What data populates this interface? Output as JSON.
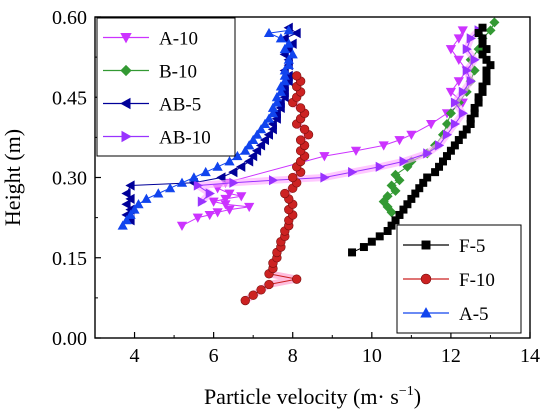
{
  "chart_data": {
    "type": "scatter",
    "title": "",
    "xlabel": "Particle velocity (m· s",
    "xlabel_sup": "−1",
    "xlabel_close": ")",
    "ylabel": "Height (m)",
    "xlim": [
      3,
      14
    ],
    "ylim": [
      0,
      0.6
    ],
    "xticks": [
      4,
      6,
      8,
      10,
      12,
      14
    ],
    "xtick_labels": [
      "4",
      "6",
      "8",
      "10",
      "12",
      "14"
    ],
    "yticks": [
      0,
      0.15,
      0.3,
      0.45,
      0.6
    ],
    "ytick_labels": [
      "0.00",
      "0.15",
      "0.30",
      "0.45",
      "0.60"
    ],
    "grid": false,
    "legend_placement": [
      "top-left",
      "bottom-right"
    ],
    "series": [
      {
        "name": "A-10",
        "color": "#cc33ff",
        "marker": "triangle-down",
        "points": [
          [
            5.2,
            0.21
          ],
          [
            5.6,
            0.225
          ],
          [
            5.9,
            0.23
          ],
          [
            6.1,
            0.235
          ],
          [
            6.4,
            0.24
          ],
          [
            6.9,
            0.245
          ],
          [
            6.3,
            0.25
          ],
          [
            6.0,
            0.255
          ],
          [
            6.3,
            0.26
          ],
          [
            6.7,
            0.265
          ],
          [
            6.4,
            0.27
          ],
          [
            6.1,
            0.28
          ],
          [
            6.3,
            0.29
          ],
          [
            8.8,
            0.34
          ],
          [
            9.6,
            0.35
          ],
          [
            10.3,
            0.36
          ],
          [
            10.7,
            0.37
          ],
          [
            11.0,
            0.38
          ],
          [
            11.5,
            0.4
          ],
          [
            11.9,
            0.42
          ],
          [
            12.3,
            0.44
          ],
          [
            12.0,
            0.46
          ],
          [
            12.2,
            0.48
          ],
          [
            12.4,
            0.5
          ],
          [
            12.2,
            0.52
          ],
          [
            12.0,
            0.54
          ],
          [
            12.2,
            0.56
          ],
          [
            12.3,
            0.575
          ]
        ]
      },
      {
        "name": "B-10",
        "color": "#339933",
        "marker": "diamond",
        "points": [
          [
            10.5,
            0.235
          ],
          [
            10.4,
            0.245
          ],
          [
            10.3,
            0.255
          ],
          [
            10.4,
            0.265
          ],
          [
            10.6,
            0.275
          ],
          [
            10.5,
            0.285
          ],
          [
            10.7,
            0.295
          ],
          [
            10.6,
            0.305
          ],
          [
            10.9,
            0.32
          ],
          [
            11.0,
            0.33
          ],
          [
            11.4,
            0.345
          ],
          [
            11.6,
            0.36
          ],
          [
            11.8,
            0.38
          ],
          [
            11.9,
            0.4
          ],
          [
            12.0,
            0.42
          ],
          [
            12.2,
            0.44
          ],
          [
            12.4,
            0.46
          ],
          [
            12.5,
            0.48
          ],
          [
            12.6,
            0.5
          ],
          [
            12.5,
            0.52
          ],
          [
            12.7,
            0.54
          ],
          [
            12.8,
            0.56
          ],
          [
            13.0,
            0.575
          ],
          [
            13.1,
            0.59
          ]
        ]
      },
      {
        "name": "AB-5",
        "color": "#000099",
        "marker": "triangle-left",
        "points": [
          [
            3.9,
            0.22
          ],
          [
            3.8,
            0.23
          ],
          [
            3.9,
            0.24
          ],
          [
            3.8,
            0.25
          ],
          [
            3.9,
            0.26
          ],
          [
            3.8,
            0.27
          ],
          [
            3.9,
            0.285
          ],
          [
            5.5,
            0.29
          ],
          [
            6.2,
            0.3
          ],
          [
            6.5,
            0.31
          ],
          [
            6.7,
            0.32
          ],
          [
            6.9,
            0.33
          ],
          [
            7.0,
            0.34
          ],
          [
            7.1,
            0.35
          ],
          [
            7.2,
            0.36
          ],
          [
            7.3,
            0.37
          ],
          [
            7.4,
            0.38
          ],
          [
            7.5,
            0.39
          ],
          [
            7.5,
            0.4
          ],
          [
            7.6,
            0.41
          ],
          [
            7.6,
            0.42
          ],
          [
            7.7,
            0.43
          ],
          [
            7.7,
            0.44
          ],
          [
            7.8,
            0.45
          ],
          [
            7.8,
            0.46
          ],
          [
            7.8,
            0.47
          ],
          [
            7.9,
            0.48
          ],
          [
            7.9,
            0.49
          ],
          [
            7.8,
            0.5
          ],
          [
            7.9,
            0.51
          ],
          [
            7.9,
            0.52
          ],
          [
            7.8,
            0.53
          ],
          [
            7.9,
            0.54
          ],
          [
            8.0,
            0.55
          ],
          [
            7.8,
            0.56
          ],
          [
            8.1,
            0.57
          ],
          [
            7.9,
            0.58
          ]
        ]
      },
      {
        "name": "AB-10",
        "color": "#9933ff",
        "marker": "triangle-right",
        "points": [
          [
            5.7,
            0.255
          ],
          [
            5.9,
            0.27
          ],
          [
            5.6,
            0.285
          ],
          [
            6.5,
            0.29
          ],
          [
            7.5,
            0.295
          ],
          [
            8.8,
            0.3
          ],
          [
            9.5,
            0.31
          ],
          [
            10.2,
            0.32
          ],
          [
            10.8,
            0.33
          ],
          [
            11.4,
            0.345
          ],
          [
            11.7,
            0.36
          ],
          [
            11.9,
            0.38
          ],
          [
            12.1,
            0.4
          ],
          [
            12.3,
            0.42
          ],
          [
            12.1,
            0.44
          ],
          [
            12.3,
            0.46
          ],
          [
            12.5,
            0.48
          ],
          [
            12.4,
            0.5
          ],
          [
            12.6,
            0.52
          ],
          [
            12.4,
            0.54
          ],
          [
            12.5,
            0.56
          ],
          [
            12.7,
            0.575
          ]
        ]
      },
      {
        "name": "F-5",
        "color": "#000000",
        "marker": "square",
        "points": [
          [
            9.5,
            0.16
          ],
          [
            9.8,
            0.17
          ],
          [
            10.0,
            0.18
          ],
          [
            10.2,
            0.19
          ],
          [
            10.4,
            0.2
          ],
          [
            10.5,
            0.21
          ],
          [
            10.6,
            0.22
          ],
          [
            10.7,
            0.23
          ],
          [
            10.8,
            0.24
          ],
          [
            10.9,
            0.25
          ],
          [
            11.0,
            0.26
          ],
          [
            11.1,
            0.27
          ],
          [
            11.2,
            0.28
          ],
          [
            11.3,
            0.29
          ],
          [
            11.4,
            0.3
          ],
          [
            11.6,
            0.31
          ],
          [
            11.7,
            0.32
          ],
          [
            11.8,
            0.33
          ],
          [
            11.9,
            0.34
          ],
          [
            12.0,
            0.35
          ],
          [
            12.1,
            0.36
          ],
          [
            12.2,
            0.37
          ],
          [
            12.3,
            0.38
          ],
          [
            12.4,
            0.39
          ],
          [
            12.5,
            0.4
          ],
          [
            12.5,
            0.41
          ],
          [
            12.6,
            0.42
          ],
          [
            12.6,
            0.43
          ],
          [
            12.7,
            0.44
          ],
          [
            12.7,
            0.45
          ],
          [
            12.8,
            0.46
          ],
          [
            12.8,
            0.47
          ],
          [
            12.9,
            0.48
          ],
          [
            12.9,
            0.49
          ],
          [
            12.9,
            0.5
          ],
          [
            13.0,
            0.51
          ],
          [
            12.9,
            0.52
          ],
          [
            12.8,
            0.53
          ],
          [
            12.9,
            0.54
          ],
          [
            12.8,
            0.55
          ],
          [
            12.8,
            0.56
          ],
          [
            12.7,
            0.57
          ],
          [
            12.8,
            0.58
          ]
        ]
      },
      {
        "name": "F-10",
        "color": "#cc2222",
        "marker": "circle",
        "points": [
          [
            6.8,
            0.07
          ],
          [
            7.0,
            0.08
          ],
          [
            7.2,
            0.09
          ],
          [
            7.4,
            0.1
          ],
          [
            8.1,
            0.11
          ],
          [
            7.4,
            0.12
          ],
          [
            7.5,
            0.13
          ],
          [
            7.5,
            0.14
          ],
          [
            7.6,
            0.15
          ],
          [
            7.6,
            0.16
          ],
          [
            7.7,
            0.17
          ],
          [
            7.7,
            0.18
          ],
          [
            7.8,
            0.19
          ],
          [
            7.8,
            0.2
          ],
          [
            7.9,
            0.21
          ],
          [
            7.9,
            0.22
          ],
          [
            8.0,
            0.23
          ],
          [
            7.9,
            0.24
          ],
          [
            8.0,
            0.25
          ],
          [
            7.9,
            0.26
          ],
          [
            7.8,
            0.27
          ],
          [
            8.0,
            0.28
          ],
          [
            8.1,
            0.29
          ],
          [
            8.0,
            0.3
          ],
          [
            8.2,
            0.31
          ],
          [
            8.1,
            0.32
          ],
          [
            8.2,
            0.33
          ],
          [
            8.3,
            0.34
          ],
          [
            8.2,
            0.35
          ],
          [
            8.3,
            0.36
          ],
          [
            8.2,
            0.37
          ],
          [
            8.4,
            0.38
          ],
          [
            8.3,
            0.39
          ],
          [
            8.1,
            0.4
          ],
          [
            8.2,
            0.41
          ],
          [
            8.3,
            0.42
          ],
          [
            8.2,
            0.43
          ],
          [
            8.0,
            0.44
          ],
          [
            8.1,
            0.45
          ],
          [
            8.2,
            0.46
          ],
          [
            8.1,
            0.47
          ],
          [
            8.2,
            0.48
          ],
          [
            8.1,
            0.49
          ]
        ]
      },
      {
        "name": "A-5",
        "color": "#1144ee",
        "marker": "triangle-up",
        "points": [
          [
            3.7,
            0.21
          ],
          [
            3.8,
            0.22
          ],
          [
            3.9,
            0.23
          ],
          [
            4.0,
            0.24
          ],
          [
            4.1,
            0.25
          ],
          [
            4.3,
            0.26
          ],
          [
            4.6,
            0.27
          ],
          [
            4.9,
            0.28
          ],
          [
            5.2,
            0.29
          ],
          [
            5.5,
            0.3
          ],
          [
            5.8,
            0.31
          ],
          [
            6.1,
            0.32
          ],
          [
            6.4,
            0.33
          ],
          [
            6.6,
            0.34
          ],
          [
            6.8,
            0.35
          ],
          [
            6.9,
            0.36
          ],
          [
            7.0,
            0.37
          ],
          [
            7.1,
            0.38
          ],
          [
            7.2,
            0.39
          ],
          [
            7.3,
            0.4
          ],
          [
            7.4,
            0.41
          ],
          [
            7.5,
            0.42
          ],
          [
            7.5,
            0.43
          ],
          [
            7.6,
            0.44
          ],
          [
            7.6,
            0.45
          ],
          [
            7.7,
            0.46
          ],
          [
            7.7,
            0.47
          ],
          [
            7.8,
            0.48
          ],
          [
            7.8,
            0.49
          ],
          [
            7.8,
            0.5
          ],
          [
            7.9,
            0.51
          ],
          [
            7.9,
            0.52
          ],
          [
            8.0,
            0.53
          ],
          [
            7.8,
            0.54
          ],
          [
            7.9,
            0.55
          ],
          [
            7.7,
            0.56
          ],
          [
            7.4,
            0.57
          ],
          [
            7.9,
            0.575
          ]
        ]
      }
    ]
  }
}
